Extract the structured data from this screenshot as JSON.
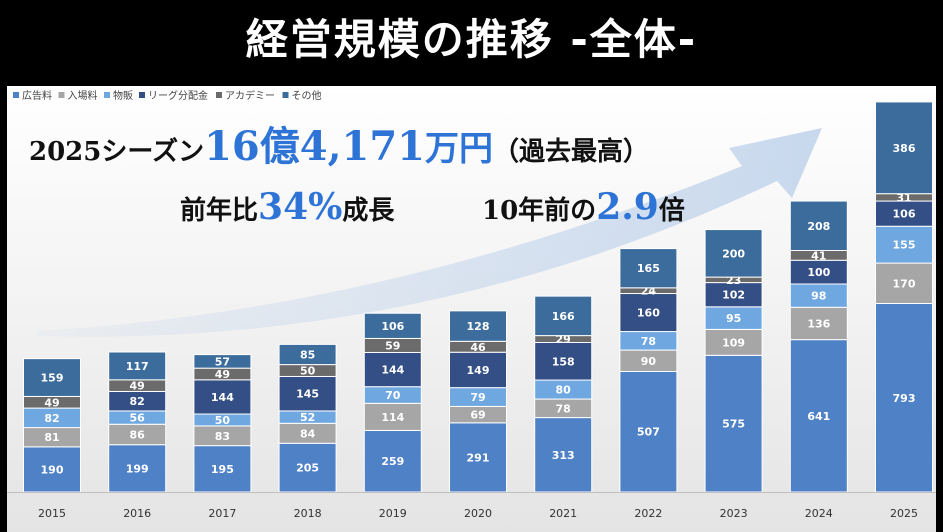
{
  "title": "経営規模の推移 -全体-",
  "annotations": {
    "line1_prefix": "2025シーズン",
    "line1_value": "16億4,171",
    "line1_unit": "万円",
    "line1_suffix": "（過去最高）",
    "line2_prefix": "前年比",
    "line2_value": "34%",
    "line2_suffix": "成長",
    "line3_prefix": "10年前の",
    "line3_value": "2.9",
    "line3_suffix": "倍"
  },
  "colors": {
    "広告料": "#4f81c7",
    "入場料": "#a6a6a6",
    "物販": "#6fa8e0",
    "リーグ分配金": "#344f85",
    "アカデミー": "#6b6b6b",
    "その他": "#3b6c9c",
    "arrow": "#c5d6ec",
    "accent": "#2e74d6"
  },
  "chart_data": {
    "type": "bar",
    "stacked": true,
    "categories": [
      "2015",
      "2016",
      "2017",
      "2018",
      "2019",
      "2020",
      "2021",
      "2022",
      "2023",
      "2024",
      "2025"
    ],
    "series": [
      {
        "name": "広告料",
        "values": [
          190,
          199,
          195,
          205,
          259,
          291,
          313,
          507,
          575,
          641,
          793
        ]
      },
      {
        "name": "入場料",
        "values": [
          81,
          86,
          83,
          84,
          114,
          69,
          78,
          90,
          109,
          136,
          170
        ]
      },
      {
        "name": "物販",
        "values": [
          82,
          56,
          50,
          52,
          70,
          79,
          80,
          78,
          95,
          98,
          155
        ]
      },
      {
        "name": "リーグ分配金",
        "values": [
          null,
          82,
          144,
          145,
          144,
          149,
          158,
          160,
          102,
          100,
          106
        ]
      },
      {
        "name": "アカデミー",
        "values": [
          49,
          49,
          49,
          50,
          59,
          46,
          29,
          24,
          23,
          41,
          31
        ]
      },
      {
        "name": "その他",
        "values": [
          159,
          117,
          57,
          85,
          106,
          128,
          166,
          165,
          200,
          208,
          386
        ]
      }
    ],
    "legend_position": "top-left",
    "grid": false
  }
}
